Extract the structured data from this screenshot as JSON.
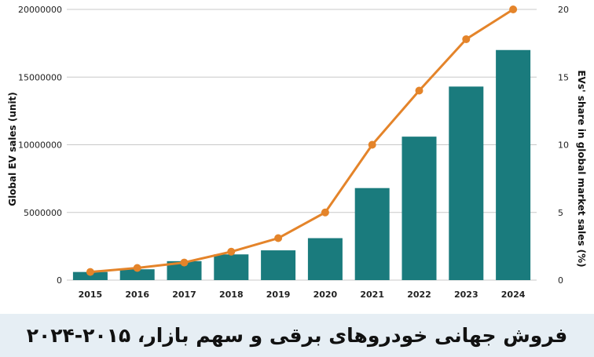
{
  "chart_data": {
    "type": "bar",
    "categories": [
      "2015",
      "2016",
      "2017",
      "2018",
      "2019",
      "2020",
      "2021",
      "2022",
      "2023",
      "2024"
    ],
    "series": [
      {
        "type": "bar",
        "axis": "left",
        "color": "#1a7b7d",
        "values": [
          600000,
          800000,
          1400000,
          1900000,
          2200000,
          3100000,
          6800000,
          10600000,
          14300000,
          17000000
        ]
      },
      {
        "type": "line",
        "axis": "right",
        "color": "#e4842a",
        "values": [
          0.6,
          0.9,
          1.3,
          2.1,
          3.1,
          5.0,
          10.0,
          14.0,
          17.8,
          20.0
        ]
      }
    ],
    "ylabel": "Global EV sales (unit)",
    "y2label": "EVs' share in global market sales (%)",
    "ylim": [
      0,
      20000000
    ],
    "y2lim": [
      0,
      20
    ],
    "yticks": [
      "0",
      "5000000",
      "10000000",
      "15000000",
      "20000000"
    ],
    "y2ticks": [
      "0",
      "5",
      "10",
      "15",
      "20"
    ],
    "grid": true,
    "legend": "none"
  },
  "caption": "فروش جهانی خودروهای برقی و سهم بازار، ۲۰۱۵-۲۰۲۴",
  "colors": {
    "grid": "#c8c8c8",
    "caption_bg": "#e6eef4"
  }
}
